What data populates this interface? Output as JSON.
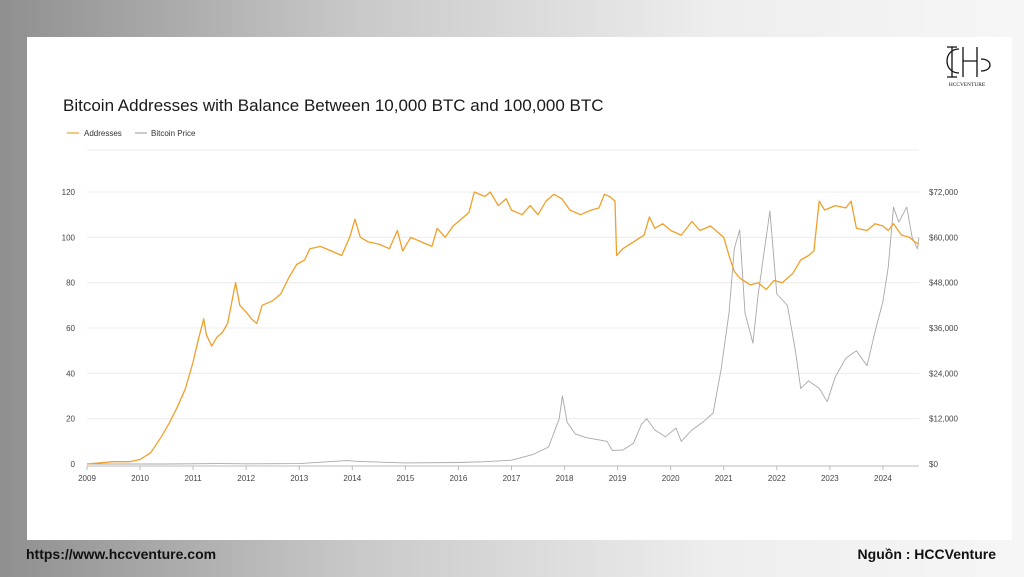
{
  "footer": {
    "url": "https://www.hccventure.com",
    "source": "Nguồn : HCCVenture"
  },
  "logo": {
    "text": "HCCVENTURE"
  },
  "colors": {
    "addresses": "#f0a02a",
    "price": "#a8a8a8",
    "grid": "#ececec"
  },
  "chart_data": {
    "type": "line",
    "title": "Bitcoin Addresses with Balance Between 10,000 BTC and 100,000 BTC",
    "legend": {
      "placement": "top-left",
      "entries": [
        "Addresses",
        "Bitcoin Price"
      ]
    },
    "grid": true,
    "x_ticks": [
      "2009",
      "2010",
      "2011",
      "2012",
      "2013",
      "2014",
      "2015",
      "2016",
      "2017",
      "2018",
      "2019",
      "2020",
      "2021",
      "2022",
      "2023",
      "2024"
    ],
    "y_left": {
      "ticks": [
        "0",
        "20",
        "40",
        "60",
        "80",
        "100",
        "120"
      ],
      "range": [
        0,
        120
      ]
    },
    "y_right": {
      "ticks": [
        "$0",
        "$12,000",
        "$24,000",
        "$36,000",
        "$48,000",
        "$60,000",
        "$72,000"
      ],
      "range": [
        0,
        72000
      ]
    },
    "series": [
      {
        "name": "Addresses",
        "axis": "left",
        "points": [
          [
            2009.0,
            0
          ],
          [
            2009.5,
            1
          ],
          [
            2009.8,
            1
          ],
          [
            2010.0,
            2
          ],
          [
            2010.2,
            5
          ],
          [
            2010.4,
            12
          ],
          [
            2010.55,
            18
          ],
          [
            2010.7,
            25
          ],
          [
            2010.85,
            33
          ],
          [
            2011.0,
            45
          ],
          [
            2011.1,
            55
          ],
          [
            2011.2,
            64
          ],
          [
            2011.25,
            57
          ],
          [
            2011.35,
            52
          ],
          [
            2011.45,
            56
          ],
          [
            2011.55,
            58
          ],
          [
            2011.65,
            62
          ],
          [
            2011.75,
            74
          ],
          [
            2011.8,
            80
          ],
          [
            2011.88,
            70
          ],
          [
            2012.0,
            67
          ],
          [
            2012.1,
            64
          ],
          [
            2012.2,
            62
          ],
          [
            2012.3,
            70
          ],
          [
            2012.5,
            72
          ],
          [
            2012.65,
            75
          ],
          [
            2012.8,
            82
          ],
          [
            2012.95,
            88
          ],
          [
            2013.1,
            90
          ],
          [
            2013.2,
            95
          ],
          [
            2013.4,
            96
          ],
          [
            2013.6,
            94
          ],
          [
            2013.8,
            92
          ],
          [
            2013.95,
            100
          ],
          [
            2014.05,
            108
          ],
          [
            2014.15,
            100
          ],
          [
            2014.3,
            98
          ],
          [
            2014.5,
            97
          ],
          [
            2014.7,
            95
          ],
          [
            2014.85,
            103
          ],
          [
            2014.95,
            94
          ],
          [
            2015.1,
            100
          ],
          [
            2015.3,
            98
          ],
          [
            2015.5,
            96
          ],
          [
            2015.6,
            104
          ],
          [
            2015.75,
            100
          ],
          [
            2015.9,
            105
          ],
          [
            2016.05,
            108
          ],
          [
            2016.2,
            111
          ],
          [
            2016.3,
            120
          ],
          [
            2016.5,
            118
          ],
          [
            2016.6,
            120
          ],
          [
            2016.75,
            114
          ],
          [
            2016.9,
            117
          ],
          [
            2017.0,
            112
          ],
          [
            2017.2,
            110
          ],
          [
            2017.35,
            114
          ],
          [
            2017.5,
            110
          ],
          [
            2017.65,
            116
          ],
          [
            2017.8,
            119
          ],
          [
            2017.95,
            117
          ],
          [
            2018.1,
            112
          ],
          [
            2018.3,
            110
          ],
          [
            2018.5,
            112
          ],
          [
            2018.65,
            113
          ],
          [
            2018.75,
            119
          ],
          [
            2018.85,
            118
          ],
          [
            2018.95,
            116
          ],
          [
            2018.98,
            92
          ],
          [
            2019.1,
            95
          ],
          [
            2019.3,
            98
          ],
          [
            2019.5,
            101
          ],
          [
            2019.6,
            109
          ],
          [
            2019.7,
            104
          ],
          [
            2019.85,
            106
          ],
          [
            2020.0,
            103
          ],
          [
            2020.2,
            101
          ],
          [
            2020.4,
            107
          ],
          [
            2020.55,
            103
          ],
          [
            2020.75,
            105
          ],
          [
            2020.9,
            102
          ],
          [
            2021.0,
            100
          ],
          [
            2021.1,
            92
          ],
          [
            2021.2,
            85
          ],
          [
            2021.3,
            82
          ],
          [
            2021.5,
            79
          ],
          [
            2021.65,
            80
          ],
          [
            2021.8,
            77
          ],
          [
            2021.95,
            81
          ],
          [
            2022.1,
            80
          ],
          [
            2022.3,
            84
          ],
          [
            2022.45,
            90
          ],
          [
            2022.6,
            92
          ],
          [
            2022.7,
            94
          ],
          [
            2022.8,
            116
          ],
          [
            2022.9,
            112
          ],
          [
            2023.1,
            114
          ],
          [
            2023.3,
            113
          ],
          [
            2023.4,
            116
          ],
          [
            2023.5,
            104
          ],
          [
            2023.7,
            103
          ],
          [
            2023.85,
            106
          ],
          [
            2024.0,
            105
          ],
          [
            2024.1,
            103
          ],
          [
            2024.2,
            106
          ],
          [
            2024.35,
            101
          ],
          [
            2024.5,
            100
          ],
          [
            2024.6,
            98
          ],
          [
            2024.68,
            97
          ]
        ]
      },
      {
        "name": "Bitcoin Price",
        "axis": "right",
        "points": [
          [
            2009.0,
            0
          ],
          [
            2010.5,
            0
          ],
          [
            2011.5,
            100
          ],
          [
            2012.0,
            50
          ],
          [
            2013.0,
            100
          ],
          [
            2013.9,
            900
          ],
          [
            2014.1,
            700
          ],
          [
            2014.5,
            500
          ],
          [
            2015.0,
            300
          ],
          [
            2016.0,
            400
          ],
          [
            2016.5,
            600
          ],
          [
            2017.0,
            1000
          ],
          [
            2017.4,
            2500
          ],
          [
            2017.7,
            4500
          ],
          [
            2017.9,
            12000
          ],
          [
            2017.96,
            18000
          ],
          [
            2018.05,
            11000
          ],
          [
            2018.2,
            8000
          ],
          [
            2018.4,
            7000
          ],
          [
            2018.6,
            6500
          ],
          [
            2018.8,
            6000
          ],
          [
            2018.9,
            3600
          ],
          [
            2019.1,
            3700
          ],
          [
            2019.3,
            5500
          ],
          [
            2019.45,
            10500
          ],
          [
            2019.55,
            12000
          ],
          [
            2019.7,
            9000
          ],
          [
            2019.9,
            7200
          ],
          [
            2020.1,
            9500
          ],
          [
            2020.2,
            6000
          ],
          [
            2020.4,
            9000
          ],
          [
            2020.6,
            11000
          ],
          [
            2020.8,
            13500
          ],
          [
            2020.95,
            25000
          ],
          [
            2021.1,
            40000
          ],
          [
            2021.2,
            57000
          ],
          [
            2021.3,
            62000
          ],
          [
            2021.4,
            40000
          ],
          [
            2021.55,
            32000
          ],
          [
            2021.65,
            45000
          ],
          [
            2021.8,
            60000
          ],
          [
            2021.87,
            67000
          ],
          [
            2022.0,
            45000
          ],
          [
            2022.2,
            42000
          ],
          [
            2022.35,
            30000
          ],
          [
            2022.45,
            20000
          ],
          [
            2022.6,
            22000
          ],
          [
            2022.8,
            20000
          ],
          [
            2022.95,
            16500
          ],
          [
            2023.1,
            23000
          ],
          [
            2023.3,
            28000
          ],
          [
            2023.5,
            30000
          ],
          [
            2023.7,
            26000
          ],
          [
            2023.85,
            35000
          ],
          [
            2024.0,
            43000
          ],
          [
            2024.1,
            52000
          ],
          [
            2024.2,
            68000
          ],
          [
            2024.3,
            64000
          ],
          [
            2024.45,
            68000
          ],
          [
            2024.55,
            60000
          ],
          [
            2024.65,
            57000
          ],
          [
            2024.68,
            60000
          ]
        ]
      }
    ]
  }
}
